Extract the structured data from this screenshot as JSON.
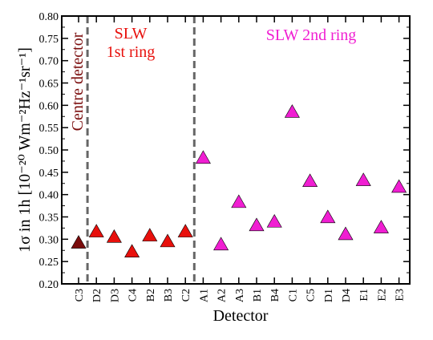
{
  "chart_data": {
    "type": "scatter",
    "title": "",
    "xlabel": "Detector",
    "ylabel": "1σ in 1h [10⁻²⁰ Wm⁻²Hz⁻¹sr⁻¹]",
    "ylim": [
      0.2,
      0.8
    ],
    "yticks": [
      "0.20",
      "0.25",
      "0.30",
      "0.35",
      "0.40",
      "0.45",
      "0.50",
      "0.55",
      "0.60",
      "0.65",
      "0.70",
      "0.75",
      "0.80"
    ],
    "categories": [
      "C3",
      "D2",
      "D3",
      "C4",
      "B2",
      "B3",
      "C2",
      "A1",
      "A2",
      "A3",
      "B1",
      "B4",
      "C1",
      "C5",
      "D1",
      "D4",
      "E1",
      "E2",
      "E3"
    ],
    "grid": false,
    "dividers_after": [
      "C3",
      "C2"
    ],
    "groups": [
      {
        "name": "Centre detector",
        "color": "#7a0c0c",
        "label_color": "#7a0c0c",
        "marker": "triangle",
        "points": [
          {
            "x": "C3",
            "y": 0.292
          }
        ]
      },
      {
        "name": "SLW\n1st ring",
        "color": "#e8100c",
        "label_color": "#e8100c",
        "marker": "triangle",
        "points": [
          {
            "x": "D2",
            "y": 0.317
          },
          {
            "x": "D3",
            "y": 0.305
          },
          {
            "x": "C4",
            "y": 0.272
          },
          {
            "x": "B2",
            "y": 0.308
          },
          {
            "x": "B3",
            "y": 0.295
          },
          {
            "x": "C2",
            "y": 0.317
          }
        ]
      },
      {
        "name": "SLW 2nd ring",
        "color": "#f01ed2",
        "label_color": "#f01ed2",
        "marker": "triangle",
        "points": [
          {
            "x": "A1",
            "y": 0.482
          },
          {
            "x": "A2",
            "y": 0.288
          },
          {
            "x": "A3",
            "y": 0.383
          },
          {
            "x": "B1",
            "y": 0.331
          },
          {
            "x": "B4",
            "y": 0.339
          },
          {
            "x": "C1",
            "y": 0.585
          },
          {
            "x": "C5",
            "y": 0.43
          },
          {
            "x": "D1",
            "y": 0.349
          },
          {
            "x": "D4",
            "y": 0.311
          },
          {
            "x": "E1",
            "y": 0.432
          },
          {
            "x": "E2",
            "y": 0.326
          },
          {
            "x": "E3",
            "y": 0.417
          }
        ]
      }
    ]
  }
}
